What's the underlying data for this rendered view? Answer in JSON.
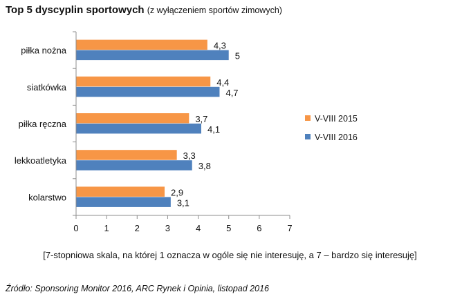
{
  "header": {
    "title": "Top  5 dyscyplin sportowych",
    "subtitle": "(z wyłączeniem sportów zimowych)"
  },
  "chart_data": {
    "type": "bar",
    "orientation": "horizontal",
    "categories": [
      "piłka nożna",
      "siatkówka",
      "piłka ręczna",
      "lekkoatletyka",
      "kolarstwo"
    ],
    "series": [
      {
        "name": "V-VIII 2015",
        "color": "#f79646",
        "values": [
          4.3,
          4.4,
          3.7,
          3.3,
          2.9
        ],
        "labels": [
          "4,3",
          "4,4",
          "3,7",
          "3,3",
          "2,9"
        ]
      },
      {
        "name": "V-VIII 2016",
        "color": "#4f81bd",
        "values": [
          5,
          4.7,
          4.1,
          3.8,
          3.1
        ],
        "labels": [
          "5",
          "4,7",
          "4,1",
          "3,8",
          "3,1"
        ]
      }
    ],
    "xlim": [
      0,
      7
    ],
    "xticks": [
      "0",
      "1",
      "2",
      "3",
      "4",
      "5",
      "6",
      "7"
    ],
    "legend_position": "right",
    "grid": false
  },
  "footer": {
    "note": "[7-stopniowa  skala, na której 1 oznacza w ogóle się nie interesuję, a 7 – bardzo się interesuję]",
    "source": "Źródło: Sponsoring Monitor 2016, ARC Rynek i Opinia, listopad 2016"
  }
}
